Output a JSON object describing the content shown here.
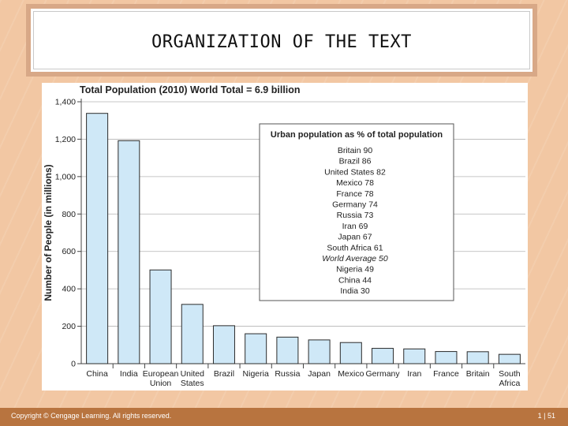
{
  "slide": {
    "title": "ORGANIZATION OF THE TEXT",
    "copyright": "Copyright © Cengage Learning. All rights reserved.",
    "page": "1 | 51"
  },
  "colors": {
    "background": "#f2c7a3",
    "footer": "#b8743f",
    "bar_fill": "#cfe8f7",
    "bar_stroke": "#2b2b2b"
  },
  "chart_data": {
    "type": "bar",
    "title": "Total Population (2010) World Total = 6.9 billion",
    "ylabel": "Number of People (in millions)",
    "xlabel": "",
    "ylim": [
      0,
      1400
    ],
    "yticks": [
      "0",
      "200",
      "400",
      "600",
      "800",
      "1,000",
      "1,200",
      "1,400"
    ],
    "grid": true,
    "categories": [
      [
        "China"
      ],
      [
        "India"
      ],
      [
        "European",
        "Union"
      ],
      [
        "United",
        "States"
      ],
      [
        "Brazil"
      ],
      [
        "Nigeria"
      ],
      [
        "Russia"
      ],
      [
        "Japan"
      ],
      [
        "Mexico"
      ],
      [
        "Germany"
      ],
      [
        "Iran"
      ],
      [
        "France"
      ],
      [
        "Britain"
      ],
      [
        "South",
        "Africa"
      ]
    ],
    "values": [
      1338,
      1192,
      501,
      317,
      203,
      160,
      142,
      127,
      113,
      82,
      79,
      65,
      64,
      50
    ],
    "inset": {
      "title": "Urban population as % of total population",
      "items": [
        {
          "text": "Britain 90",
          "italic": false
        },
        {
          "text": "Brazil 86",
          "italic": false
        },
        {
          "text": "United States 82",
          "italic": false
        },
        {
          "text": "Mexico 78",
          "italic": false
        },
        {
          "text": "France 78",
          "italic": false
        },
        {
          "text": "Germany 74",
          "italic": false
        },
        {
          "text": "Russia 73",
          "italic": false
        },
        {
          "text": "Iran 69",
          "italic": false
        },
        {
          "text": "Japan 67",
          "italic": false
        },
        {
          "text": "South Africa 61",
          "italic": false
        },
        {
          "text": "World Average 50",
          "italic": true
        },
        {
          "text": "Nigeria 49",
          "italic": false
        },
        {
          "text": "China 44",
          "italic": false
        },
        {
          "text": "India 30",
          "italic": false
        }
      ]
    }
  }
}
